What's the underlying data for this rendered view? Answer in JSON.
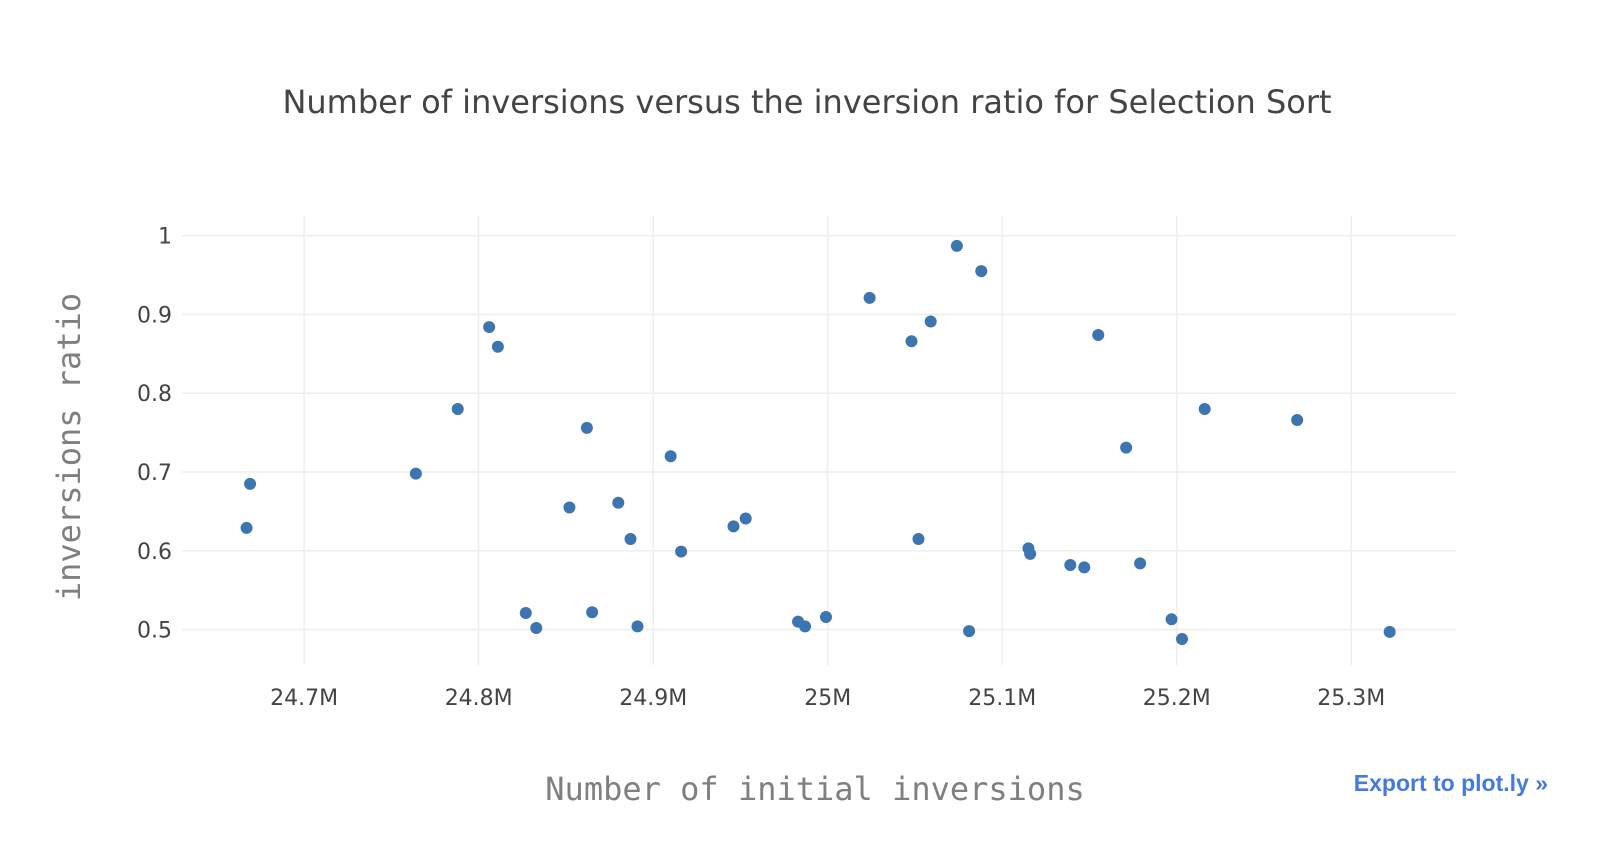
{
  "export_link": {
    "label": "Export to plot.ly »"
  },
  "colors": {
    "marker": "#3d75b0",
    "grid": "#eeeeee",
    "title": "#444444",
    "axis_title": "#7f7f7f",
    "link": "#447adb"
  },
  "chart_data": {
    "type": "scatter",
    "title": "Number of inversions versus the inversion ratio for Selection Sort",
    "xlabel": "Number of initial inversions",
    "ylabel": "inversions ratio",
    "xlim": [
      24.63,
      25.36
    ],
    "ylim": [
      0.455,
      1.025
    ],
    "x_unit": "M",
    "x_ticks": [
      24.7,
      24.8,
      24.9,
      25.0,
      25.1,
      25.2,
      25.3
    ],
    "x_tick_labels": [
      "24.7M",
      "24.8M",
      "24.9M",
      "25M",
      "25.1M",
      "25.2M",
      "25.3M"
    ],
    "y_ticks": [
      0.5,
      0.6,
      0.7,
      0.8,
      0.9,
      1.0
    ],
    "y_tick_labels": [
      "0.5",
      "0.6",
      "0.7",
      "0.8",
      "0.9",
      "1"
    ],
    "grid": true,
    "legend": "none",
    "series": [
      {
        "x": [
          24.667,
          24.669,
          24.764,
          24.788,
          24.806,
          24.811,
          24.827,
          24.833,
          24.852,
          24.862,
          24.865,
          24.88,
          24.887,
          24.891,
          24.91,
          24.916,
          24.946,
          24.953,
          24.983,
          24.987,
          24.999,
          25.024,
          25.048,
          25.052,
          25.059,
          25.074,
          25.081,
          25.088,
          25.115,
          25.116,
          25.139,
          25.147,
          25.155,
          25.171,
          25.179,
          25.197,
          25.203,
          25.216,
          25.269,
          25.322
        ],
        "y": [
          0.629,
          0.685,
          0.698,
          0.78,
          0.884,
          0.859,
          0.521,
          0.502,
          0.655,
          0.756,
          0.522,
          0.661,
          0.615,
          0.504,
          0.72,
          0.599,
          0.631,
          0.641,
          0.51,
          0.504,
          0.516,
          0.921,
          0.866,
          0.615,
          0.891,
          0.987,
          0.498,
          0.955,
          0.603,
          0.596,
          0.582,
          0.579,
          0.874,
          0.731,
          0.584,
          0.513,
          0.488,
          0.78,
          0.766,
          0.497
        ]
      }
    ]
  }
}
